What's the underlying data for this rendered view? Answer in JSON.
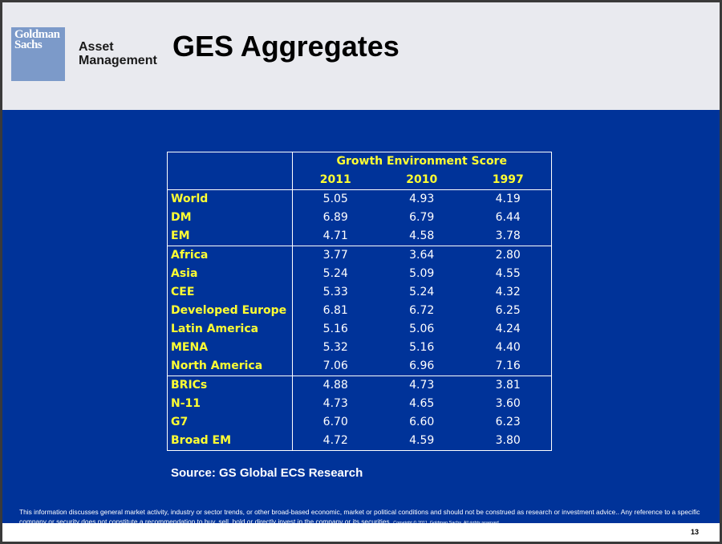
{
  "header": {
    "logo_line1": "Goldman",
    "logo_line2": "Sachs",
    "asset_line1": "Asset",
    "asset_line2": "Management",
    "title": "GES Aggregates"
  },
  "table": {
    "group_header": "Growth Environment Score",
    "columns": [
      "2011",
      "2010",
      "1997"
    ],
    "groups": [
      [
        {
          "label": "World",
          "values": [
            "5.05",
            "4.93",
            "4.19"
          ]
        },
        {
          "label": "DM",
          "values": [
            "6.89",
            "6.79",
            "6.44"
          ]
        },
        {
          "label": "EM",
          "values": [
            "4.71",
            "4.58",
            "3.78"
          ]
        }
      ],
      [
        {
          "label": "Africa",
          "values": [
            "3.77",
            "3.64",
            "2.80"
          ]
        },
        {
          "label": "Asia",
          "values": [
            "5.24",
            "5.09",
            "4.55"
          ]
        },
        {
          "label": "CEE",
          "values": [
            "5.33",
            "5.24",
            "4.32"
          ]
        },
        {
          "label": "Developed Europe",
          "values": [
            "6.81",
            "6.72",
            "6.25"
          ]
        },
        {
          "label": "Latin America",
          "values": [
            "5.16",
            "5.06",
            "4.24"
          ]
        },
        {
          "label": "MENA",
          "values": [
            "5.32",
            "5.16",
            "4.40"
          ]
        },
        {
          "label": "North America",
          "values": [
            "7.06",
            "6.96",
            "7.16"
          ]
        }
      ],
      [
        {
          "label": "BRICs",
          "values": [
            "4.88",
            "4.73",
            "3.81"
          ]
        },
        {
          "label": "N-11",
          "values": [
            "4.73",
            "4.65",
            "3.60"
          ]
        },
        {
          "label": "G7",
          "values": [
            "6.70",
            "6.60",
            "6.23"
          ]
        },
        {
          "label": "Broad EM",
          "values": [
            "4.72",
            "4.59",
            "3.80"
          ]
        }
      ]
    ]
  },
  "source": "Source: GS Global ECS Research",
  "disclaimer": {
    "main": "This information discusses general market activity, industry or sector trends, or other broad-based economic, market or political conditions and should not be construed as research or investment advice.. Any reference to a specific company or security does not constitute a recommendation to buy, sell, hold or directly invest in the company or its securities.",
    "copyright": "Copyright © 2011, Goldman Sachs. All rights reserved"
  },
  "page_number": "13"
}
